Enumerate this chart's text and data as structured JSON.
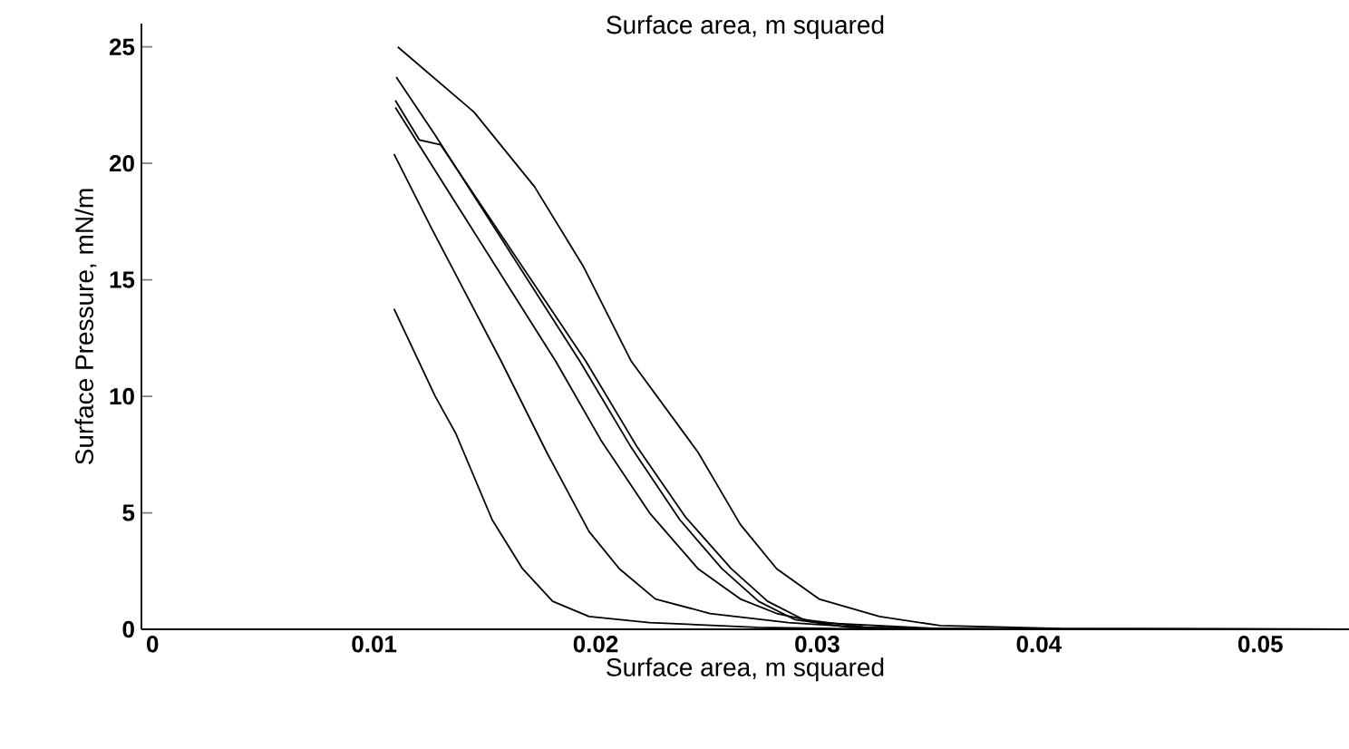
{
  "chart_data": {
    "type": "line",
    "title": "Surface area, m squared",
    "xlabel": "Surface area, m squared",
    "ylabel": "Surface Pressure, mN/m",
    "xlim": [
      -0.0005,
      0.054
    ],
    "ylim": [
      0,
      26
    ],
    "xticks": [
      0,
      0.01,
      0.02,
      0.03,
      0.04,
      0.05
    ],
    "yticks": [
      0,
      5,
      10,
      15,
      20,
      25
    ],
    "grid": false,
    "marker": "none",
    "line_style": "solid",
    "series": [
      {
        "color": "#000000",
        "x": [
          0.01107,
          0.01451,
          0.01724,
          0.01943,
          0.02161,
          0.02462,
          0.02653,
          0.02817,
          0.03008,
          0.03281,
          0.03555,
          0.041,
          0.054
        ],
        "values": [
          25.0,
          22.2,
          19.0,
          15.6,
          11.5,
          7.6,
          4.5,
          2.6,
          1.3,
          0.55,
          0.16,
          0.03,
          0
        ]
      },
      {
        "color": "#000000",
        "x": [
          0.011,
          0.01273,
          0.01929,
          0.02161,
          0.0238,
          0.0257,
          0.02735,
          0.029,
          0.03145,
          0.0369,
          0.054
        ],
        "values": [
          23.7,
          21.25,
          11.5,
          7.8,
          4.7,
          2.6,
          1.2,
          0.41,
          0.08,
          0,
          0
        ]
      },
      {
        "color": "#000000",
        "x": [
          0.01096,
          0.01205,
          0.013,
          0.01956,
          0.02189,
          0.02407,
          0.02612,
          0.02776,
          0.0294,
          0.03227,
          0.0383,
          0.054
        ],
        "values": [
          22.7,
          21.0,
          20.8,
          11.5,
          7.8,
          4.8,
          2.6,
          1.2,
          0.41,
          0.08,
          0,
          0
        ]
      },
      {
        "color": "#000000",
        "x": [
          0.01096,
          0.0182,
          0.02025,
          0.02243,
          0.02462,
          0.02653,
          0.02817,
          0.03008,
          0.03555,
          0.054
        ],
        "values": [
          22.4,
          11.5,
          8.1,
          5.0,
          2.6,
          1.3,
          0.68,
          0.29,
          0.02,
          0
        ]
      },
      {
        "color": "#000000",
        "x": [
          0.0109,
          0.0126,
          0.01574,
          0.01779,
          0.0197,
          0.02107,
          0.0227,
          0.02516,
          0.0287,
          0.0328,
          0.054
        ],
        "values": [
          20.4,
          17.2,
          11.5,
          7.6,
          4.2,
          2.6,
          1.3,
          0.68,
          0.29,
          0.03,
          0
        ]
      },
      {
        "color": "#000000",
        "x": [
          0.0109,
          0.01276,
          0.01369,
          0.01533,
          0.0167,
          0.01806,
          0.0197,
          0.02243,
          0.0273,
          0.0328,
          0.054
        ],
        "values": [
          13.75,
          10,
          8.4,
          4.7,
          2.6,
          1.2,
          0.55,
          0.29,
          0.08,
          0,
          0
        ]
      }
    ]
  }
}
